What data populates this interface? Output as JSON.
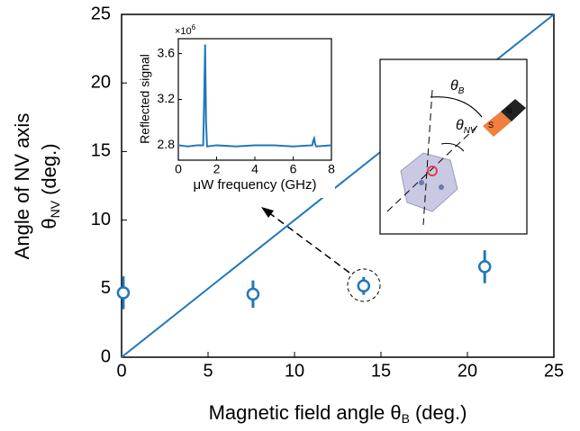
{
  "chart_data": [
    {
      "type": "scatter",
      "x_label": "Magnetic field angle θ",
      "x_label_sub": "B",
      "x_label_unit": "(deg.)",
      "y_label": "Angle of NV axis",
      "y_label_symbol": "θ",
      "y_label_sub": "NV",
      "y_label_unit": "(deg.)",
      "xlim": [
        0,
        25
      ],
      "ylim": [
        0,
        25
      ],
      "xticks": [
        0,
        5,
        10,
        15,
        20,
        25
      ],
      "yticks": [
        0,
        5,
        10,
        15,
        20,
        25
      ],
      "points": {
        "x": [
          0.1,
          7.6,
          14,
          21
        ],
        "y": [
          4.7,
          4.6,
          5.2,
          6.6
        ],
        "yerr": [
          1.2,
          1.0,
          0.65,
          1.2
        ],
        "color": "#2277bb"
      },
      "line": {
        "x": [
          0,
          25
        ],
        "y": [
          0,
          25
        ],
        "color": "#2277bb"
      },
      "annotations": [
        {
          "text": "θ",
          "sub": "B"
        },
        {
          "text": "θ",
          "sub": "NV"
        },
        {
          "text": "S"
        },
        {
          "text": "N"
        }
      ]
    },
    {
      "type": "line",
      "x_label": "μW frequency (GHz)",
      "y_label": "Reflected signal",
      "multiplier": "×10",
      "multiplier_exp": "6",
      "xlim": [
        0,
        8
      ],
      "ylim": [
        2.67,
        3.73
      ],
      "xticks": [
        0,
        2,
        4,
        6,
        8
      ],
      "yticks": [
        2.8,
        3.2,
        3.6
      ],
      "x": [
        0,
        0.5,
        1,
        1.3,
        1.35,
        1.4,
        1.45,
        1.5,
        2,
        3,
        4,
        5,
        6,
        7,
        7.05,
        7.1,
        7.15,
        7.2,
        8
      ],
      "values": [
        2.8,
        2.79,
        2.8,
        2.8,
        3.2,
        3.68,
        3.0,
        2.79,
        2.8,
        2.79,
        2.8,
        2.8,
        2.79,
        2.8,
        2.84,
        2.86,
        2.81,
        2.79,
        2.8
      ],
      "color": "#2277bb"
    }
  ]
}
